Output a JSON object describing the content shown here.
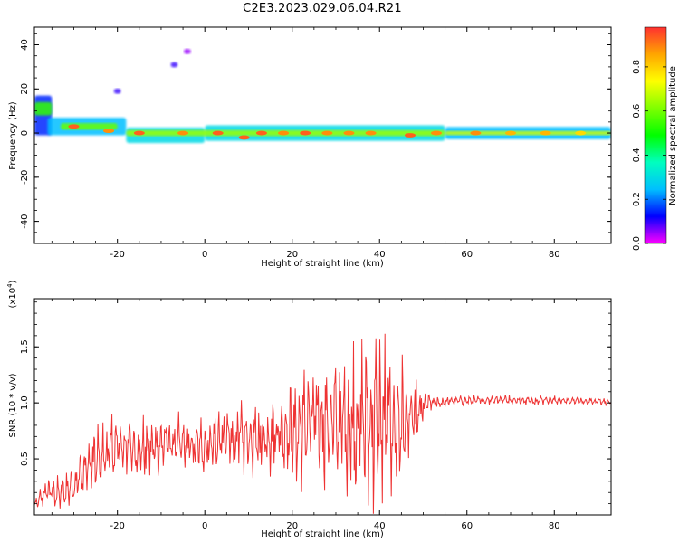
{
  "title": "C2E3.2023.029.06.04.R21",
  "colors": {
    "axis": "#000000",
    "snr_line": "#ee3333",
    "colorbar_stops": [
      "#ff00ff",
      "#0000ff",
      "#00bfff",
      "#00ffbf",
      "#00ff00",
      "#7fff00",
      "#ffff00",
      "#ffa500",
      "#ff3030"
    ]
  },
  "chart_data": [
    {
      "type": "heatmap",
      "xlabel": "Height of straight line (km)",
      "ylabel": "Frequency (Hz)",
      "xlim": [
        -39,
        93
      ],
      "ylim": [
        -50,
        48
      ],
      "xticks": [
        -20,
        0,
        20,
        40,
        60,
        80
      ],
      "xtick_labels": [
        "-20",
        "0",
        "20",
        "40",
        "60",
        "80"
      ],
      "yticks": [
        -40,
        -20,
        0,
        20,
        40
      ],
      "ytick_labels": [
        "-40",
        "-20",
        "0",
        "20",
        "40"
      ],
      "colorbar": {
        "label": "Normalized spectral amplitude",
        "range": [
          0,
          0.98
        ],
        "ticks": [
          0.0,
          0.2,
          0.4,
          0.6,
          0.8
        ],
        "tick_labels": [
          "0.0",
          "0.2",
          "0.4",
          "0.6",
          "0.8"
        ]
      },
      "bands": [
        {
          "x": [
            -39,
            -35
          ],
          "y_center": 8,
          "half_width": 9,
          "level": 0.15
        },
        {
          "x": [
            -39,
            -35
          ],
          "y_center": 11,
          "half_width": 3,
          "level": 0.55
        },
        {
          "x": [
            -36,
            -18
          ],
          "y_center": 3,
          "half_width": 4,
          "level": 0.25
        },
        {
          "x": [
            -33,
            -20
          ],
          "y_center": 3,
          "half_width": 1.5,
          "level": 0.6
        },
        {
          "x": [
            -18,
            0
          ],
          "y_center": -1,
          "half_width": 3.5,
          "level": 0.3
        },
        {
          "x": [
            0,
            55
          ],
          "y_center": 0,
          "half_width": 3.5,
          "level": 0.3
        },
        {
          "x": [
            55,
            93
          ],
          "y_center": 0,
          "half_width": 2.8,
          "level": 0.25
        },
        {
          "x": [
            -18,
            55
          ],
          "y_center": 0,
          "half_width": 1.3,
          "level": 0.65
        },
        {
          "x": [
            55,
            93
          ],
          "y_center": 0,
          "half_width": 0.9,
          "level": 0.7
        }
      ],
      "peaks": [
        {
          "x": -30,
          "y": 3,
          "level": 0.95
        },
        {
          "x": -22,
          "y": 1,
          "level": 0.9
        },
        {
          "x": -15,
          "y": 0,
          "level": 0.95
        },
        {
          "x": -5,
          "y": 0,
          "level": 0.9
        },
        {
          "x": 3,
          "y": 0,
          "level": 0.95
        },
        {
          "x": 9,
          "y": -2,
          "level": 0.95
        },
        {
          "x": 13,
          "y": 0,
          "level": 0.95
        },
        {
          "x": 18,
          "y": 0,
          "level": 0.9
        },
        {
          "x": 23,
          "y": 0,
          "level": 0.95
        },
        {
          "x": 28,
          "y": 0,
          "level": 0.9
        },
        {
          "x": 33,
          "y": 0,
          "level": 0.9
        },
        {
          "x": 38,
          "y": 0,
          "level": 0.9
        },
        {
          "x": 47,
          "y": -1,
          "level": 0.95
        },
        {
          "x": 53,
          "y": 0,
          "level": 0.9
        },
        {
          "x": 62,
          "y": 0,
          "level": 0.9
        },
        {
          "x": 70,
          "y": 0,
          "level": 0.85
        },
        {
          "x": 78,
          "y": 0,
          "level": 0.85
        },
        {
          "x": 86,
          "y": 0,
          "level": 0.8
        }
      ],
      "blobs": [
        {
          "x": -7,
          "y": 31,
          "level": 0.1
        },
        {
          "x": -20,
          "y": 19,
          "level": 0.1
        },
        {
          "x": -4,
          "y": 37,
          "level": 0.05
        }
      ]
    },
    {
      "type": "line",
      "xlabel": "Height of straight line (km)",
      "ylabel": "SNR (10 * v/v)",
      "y_multiplier_label": "(x10",
      "y_multiplier_exp": "4",
      "y_multiplier_close": ")",
      "xlim": [
        -39,
        93
      ],
      "ylim": [
        0,
        1.93
      ],
      "xticks": [
        -20,
        0,
        20,
        40,
        60,
        80
      ],
      "xtick_labels": [
        "-20",
        "0",
        "20",
        "40",
        "60",
        "80"
      ],
      "yticks": [
        0.5,
        1.0,
        1.5
      ],
      "ytick_labels": [
        "0.5",
        "1.0",
        "1.5"
      ],
      "series": [
        {
          "x": [
            -39,
            -36,
            -33,
            -30,
            -27,
            -24,
            -21,
            -18,
            -15,
            -12,
            -9,
            -6,
            -3,
            0,
            3,
            6,
            9,
            12,
            15,
            18,
            21,
            24,
            27,
            30,
            33,
            36,
            39,
            42,
            45,
            48,
            51,
            54,
            57,
            60,
            63,
            66,
            69,
            72,
            75,
            78,
            81,
            84,
            87,
            90,
            93
          ],
          "y": [
            0.08,
            0.22,
            0.18,
            0.28,
            0.42,
            0.5,
            0.6,
            0.62,
            0.58,
            0.6,
            0.65,
            0.62,
            0.6,
            0.62,
            0.66,
            0.68,
            0.68,
            0.66,
            0.72,
            0.76,
            0.72,
            0.85,
            0.82,
            0.82,
            0.8,
            0.85,
            0.82,
            0.8,
            0.82,
            0.85,
            1.0,
            1.0,
            1.02,
            1.02,
            1.02,
            1.03,
            1.03,
            1.02,
            1.02,
            1.03,
            1.02,
            1.02,
            1.01,
            1.02,
            1.0
          ],
          "amplitude": [
            0.05,
            0.12,
            0.15,
            0.18,
            0.25,
            0.3,
            0.28,
            0.25,
            0.28,
            0.25,
            0.25,
            0.25,
            0.22,
            0.25,
            0.28,
            0.3,
            0.3,
            0.3,
            0.32,
            0.38,
            0.45,
            0.5,
            0.55,
            0.6,
            0.65,
            0.75,
            0.8,
            0.75,
            0.55,
            0.35,
            0.08,
            0.05,
            0.04,
            0.04,
            0.04,
            0.04,
            0.04,
            0.04,
            0.04,
            0.04,
            0.03,
            0.03,
            0.03,
            0.03,
            0.03
          ]
        }
      ]
    }
  ]
}
